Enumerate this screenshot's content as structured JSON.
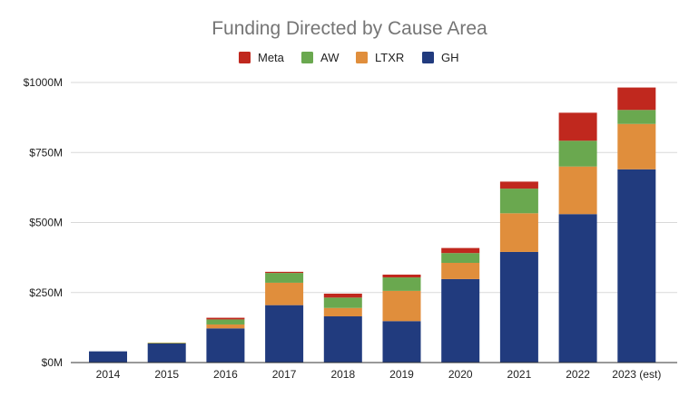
{
  "chart_data": {
    "type": "bar",
    "stacked": true,
    "title": "Funding Directed by Cause Area",
    "xlabel": "",
    "ylabel": "",
    "categories": [
      "2014",
      "2015",
      "2016",
      "2017",
      "2018",
      "2019",
      "2020",
      "2021",
      "2022",
      "2023 (est)"
    ],
    "series": [
      {
        "name": "GH",
        "color": "#213b7e",
        "values": [
          40,
          68,
          122,
          205,
          165,
          148,
          298,
          395,
          530,
          690
        ]
      },
      {
        "name": "LTXR",
        "color": "#e08e3c",
        "values": [
          0,
          2,
          14,
          80,
          30,
          108,
          58,
          138,
          170,
          162
        ]
      },
      {
        "name": "AW",
        "color": "#6aa84f",
        "values": [
          0,
          1,
          18,
          35,
          37,
          48,
          35,
          88,
          92,
          50
        ]
      },
      {
        "name": "Meta",
        "color": "#c0281e",
        "values": [
          0,
          0,
          6,
          4,
          14,
          10,
          18,
          25,
          100,
          80
        ]
      }
    ],
    "legend_order": [
      "Meta",
      "AW",
      "LTXR",
      "GH"
    ],
    "legend_position": "top",
    "ylim": [
      0,
      1000
    ],
    "yticks": [
      0,
      250,
      500,
      750,
      1000
    ],
    "ytick_labels": [
      "$0M",
      "$250M",
      "$500M",
      "$750M",
      "$1000M"
    ],
    "grid": true
  }
}
